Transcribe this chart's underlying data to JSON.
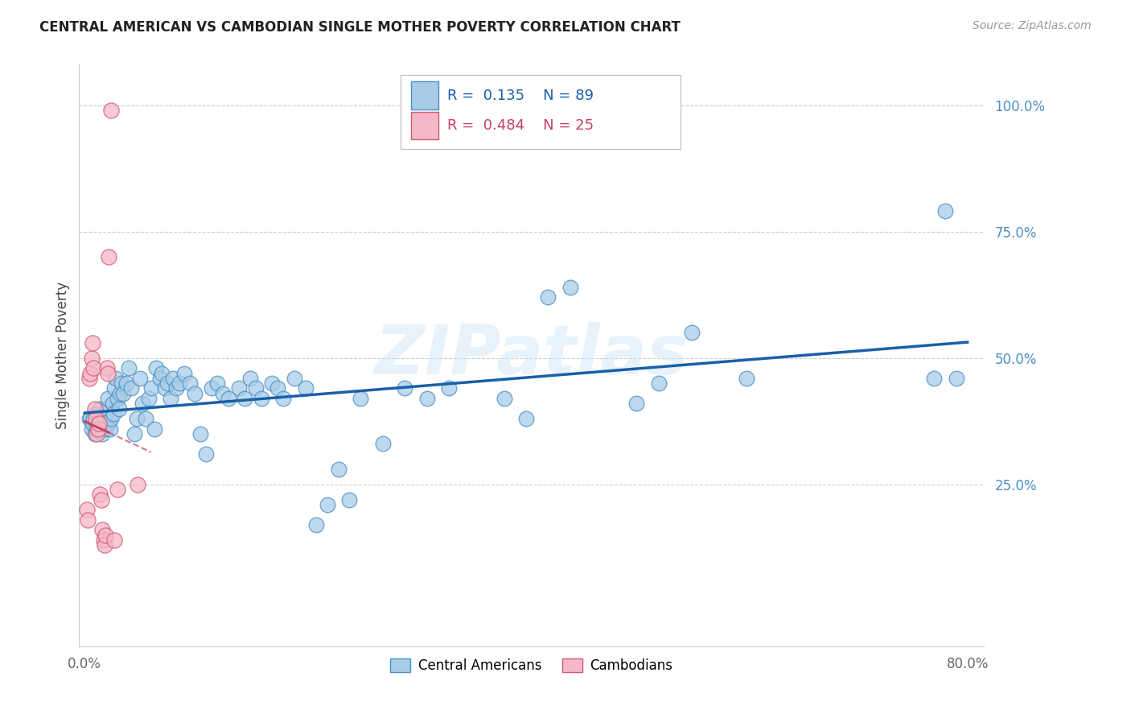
{
  "title": "CENTRAL AMERICAN VS CAMBODIAN SINGLE MOTHER POVERTY CORRELATION CHART",
  "source": "Source: ZipAtlas.com",
  "ylabel": "Single Mother Poverty",
  "watermark": "ZIPatlas",
  "xlim": [
    -0.005,
    0.815
  ],
  "ylim": [
    -0.07,
    1.08
  ],
  "legend_blue_r": "0.135",
  "legend_blue_n": "89",
  "legend_pink_r": "0.484",
  "legend_pink_n": "25",
  "blue_dot_color": "#a8cce8",
  "blue_dot_edge": "#4a90c4",
  "blue_line_color": "#1a5fa8",
  "pink_dot_color": "#f5b8c8",
  "pink_dot_edge": "#d45870",
  "pink_line_color": "#c84060",
  "grid_color": "#cccccc",
  "right_axis_color": "#4a90c4",
  "central_americans_x": [
    0.004,
    0.005,
    0.006,
    0.007,
    0.008,
    0.009,
    0.01,
    0.011,
    0.012,
    0.013,
    0.014,
    0.015,
    0.016,
    0.017,
    0.018,
    0.019,
    0.02,
    0.021,
    0.022,
    0.023,
    0.024,
    0.025,
    0.026,
    0.027,
    0.028,
    0.03,
    0.031,
    0.032,
    0.033,
    0.035,
    0.038,
    0.04,
    0.042,
    0.045,
    0.047,
    0.05,
    0.052,
    0.055,
    0.058,
    0.06,
    0.063,
    0.065,
    0.068,
    0.07,
    0.073,
    0.075,
    0.078,
    0.08,
    0.083,
    0.086,
    0.09,
    0.095,
    0.1,
    0.105,
    0.11,
    0.115,
    0.12,
    0.125,
    0.13,
    0.14,
    0.145,
    0.15,
    0.155,
    0.16,
    0.17,
    0.175,
    0.18,
    0.19,
    0.2,
    0.21,
    0.22,
    0.23,
    0.24,
    0.25,
    0.27,
    0.29,
    0.31,
    0.33,
    0.38,
    0.4,
    0.42,
    0.44,
    0.5,
    0.52,
    0.55,
    0.6,
    0.77,
    0.78,
    0.79
  ],
  "central_americans_y": [
    0.38,
    0.38,
    0.36,
    0.37,
    0.38,
    0.35,
    0.39,
    0.36,
    0.37,
    0.38,
    0.4,
    0.37,
    0.35,
    0.38,
    0.39,
    0.36,
    0.4,
    0.42,
    0.37,
    0.36,
    0.38,
    0.41,
    0.39,
    0.44,
    0.46,
    0.42,
    0.4,
    0.43,
    0.45,
    0.43,
    0.45,
    0.48,
    0.44,
    0.35,
    0.38,
    0.46,
    0.41,
    0.38,
    0.42,
    0.44,
    0.36,
    0.48,
    0.46,
    0.47,
    0.44,
    0.45,
    0.42,
    0.46,
    0.44,
    0.45,
    0.47,
    0.45,
    0.43,
    0.35,
    0.31,
    0.44,
    0.45,
    0.43,
    0.42,
    0.44,
    0.42,
    0.46,
    0.44,
    0.42,
    0.45,
    0.44,
    0.42,
    0.46,
    0.44,
    0.17,
    0.21,
    0.28,
    0.22,
    0.42,
    0.33,
    0.44,
    0.42,
    0.44,
    0.42,
    0.38,
    0.62,
    0.64,
    0.41,
    0.45,
    0.55,
    0.46,
    0.46,
    0.79,
    0.46
  ],
  "cambodians_x": [
    0.002,
    0.003,
    0.004,
    0.005,
    0.006,
    0.007,
    0.008,
    0.009,
    0.01,
    0.011,
    0.012,
    0.013,
    0.014,
    0.015,
    0.016,
    0.017,
    0.018,
    0.019,
    0.02,
    0.021,
    0.022,
    0.024,
    0.027,
    0.03,
    0.048
  ],
  "cambodians_y": [
    0.2,
    0.18,
    0.46,
    0.47,
    0.5,
    0.53,
    0.48,
    0.4,
    0.38,
    0.35,
    0.36,
    0.37,
    0.23,
    0.22,
    0.16,
    0.14,
    0.13,
    0.15,
    0.48,
    0.47,
    0.7,
    0.99,
    0.14,
    0.24,
    0.25
  ]
}
